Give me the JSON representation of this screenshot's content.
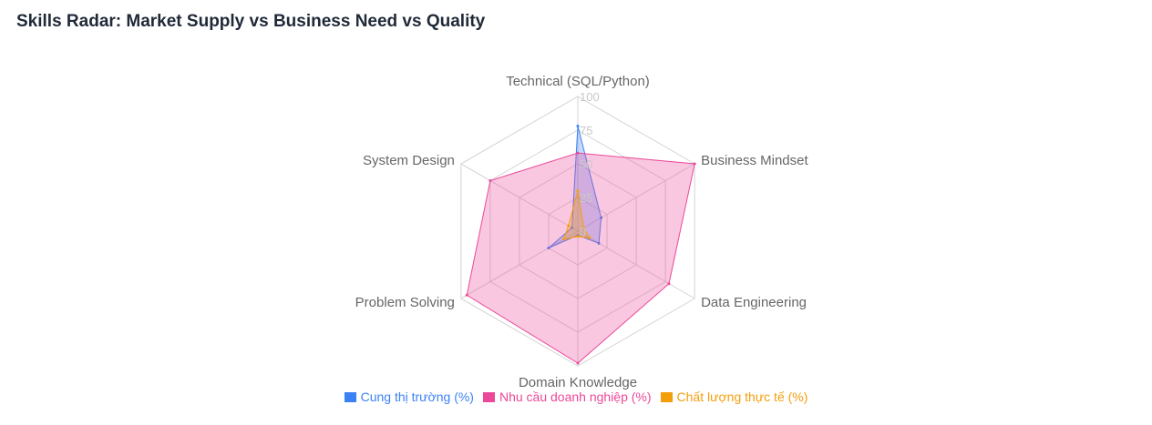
{
  "title": "Skills Radar: Market Supply vs Business Need vs Quality",
  "chart_data": {
    "type": "radar",
    "categories": [
      "Technical (SQL/Python)",
      "Business Mindset",
      "Data Engineering",
      "Domain Knowledge",
      "Problem Solving",
      "System Design"
    ],
    "r_ticks": [
      "0",
      "25",
      "50",
      "75",
      "100"
    ],
    "rlim": [
      0,
      100
    ],
    "grid": true,
    "legend_position": "bottom",
    "series": [
      {
        "name": "Cung thị trường (%)",
        "values": [
          78,
          20,
          18,
          3,
          25,
          5
        ],
        "color": "#3b82f6"
      },
      {
        "name": "Nhu cầu doanh nghiệp (%)",
        "values": [
          58,
          100,
          78,
          98,
          95,
          75
        ],
        "color": "#ec4899"
      },
      {
        "name": "Chất lượng thực tế (%)",
        "values": [
          30,
          5,
          10,
          4,
          12,
          8
        ],
        "color": "#f59e0b"
      }
    ]
  }
}
